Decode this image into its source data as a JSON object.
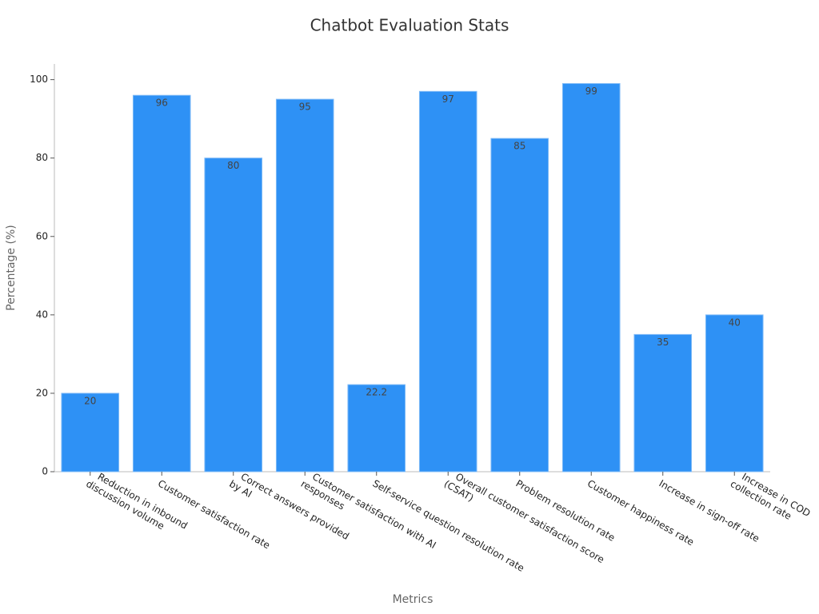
{
  "chart_data": {
    "type": "bar",
    "title": "Chatbot Evaluation Stats",
    "x_label": "Metrics",
    "y_label": "Percentage (%)",
    "categories": [
      "Reduction in inbound\ndiscussion volume",
      "Customer satisfaction rate",
      "Correct answers provided\nby AI",
      "Customer satisfaction with AI\nresponses",
      "Self-service question resolution rate",
      "Overall customer satisfaction score\n(CSAT)",
      "Problem resolution rate",
      "Customer happiness rate",
      "Increase in sign-off rate",
      "Increase in COD\ncollection rate"
    ],
    "values": [
      20,
      96,
      80,
      95,
      22.2,
      97,
      85,
      99,
      35,
      40
    ],
    "color": "#2e91f5",
    "ylim": [
      0,
      104
    ],
    "yticks": [
      0,
      20,
      40,
      60,
      80,
      100
    ],
    "grid": false
  }
}
